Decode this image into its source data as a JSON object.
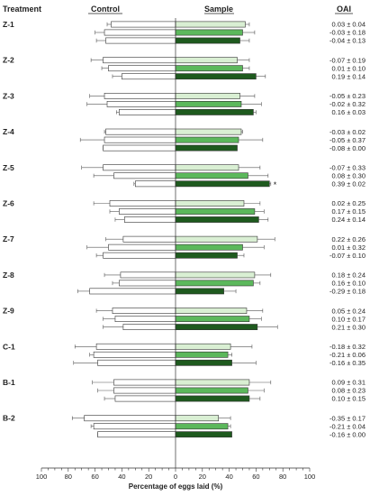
{
  "chart_data": {
    "type": "bar",
    "orientation": "horizontal-diverging",
    "headers": {
      "treatment": "Treatment",
      "control": "Control",
      "sample": "Sample",
      "oai": "OAI"
    },
    "xlabel": "Percentage of eggs laid (%)",
    "xlim": [
      -100,
      100
    ],
    "xticks": [
      -100,
      -80,
      -60,
      -40,
      -20,
      0,
      20,
      40,
      60,
      80,
      100
    ],
    "xtick_labels": [
      "100",
      "80",
      "60",
      "40",
      "20",
      "0",
      "20",
      "40",
      "60",
      "80",
      "100"
    ],
    "sample_colors": [
      "#d9efd3",
      "#5cb85c",
      "#1e5a1e"
    ],
    "control_color": "#ffffff",
    "groups": [
      {
        "treatment": "Z-1",
        "rows": [
          {
            "control": 48,
            "control_err": 3,
            "sample": 52,
            "sample_err": 3,
            "oai": "0.03 ± 0.04"
          },
          {
            "control": 53,
            "control_err": 7,
            "sample": 50,
            "sample_err": 9,
            "oai": "-0.03 ± 0.18"
          },
          {
            "control": 52,
            "control_err": 7,
            "sample": 48,
            "sample_err": 7,
            "oai": "-0.04 ± 0.13"
          }
        ]
      },
      {
        "treatment": "Z-2",
        "rows": [
          {
            "control": 54,
            "control_err": 9,
            "sample": 46,
            "sample_err": 9,
            "oai": "-0.07 ± 0.19"
          },
          {
            "control": 50,
            "control_err": 5,
            "sample": 50,
            "sample_err": 5,
            "oai": "0.01 ± 0.10"
          },
          {
            "control": 40,
            "control_err": 7,
            "sample": 60,
            "sample_err": 7,
            "oai": "0.19 ± 0.14"
          }
        ]
      },
      {
        "treatment": "Z-3",
        "rows": [
          {
            "control": 53,
            "control_err": 11,
            "sample": 48,
            "sample_err": 11,
            "oai": "-0.05 ± 0.23"
          },
          {
            "control": 51,
            "control_err": 15,
            "sample": 49,
            "sample_err": 15,
            "oai": "-0.02 ± 0.32"
          },
          {
            "control": 42,
            "control_err": 2,
            "sample": 58,
            "sample_err": 2,
            "oai": "0.16 ± 0.03"
          }
        ]
      },
      {
        "treatment": "Z-4",
        "rows": [
          {
            "control": 52,
            "control_err": 1,
            "sample": 49,
            "sample_err": 1,
            "oai": "-0.03 ± 0.02"
          },
          {
            "control": 53,
            "control_err": 18,
            "sample": 47,
            "sample_err": 18,
            "oai": "-0.05 ± 0.37"
          },
          {
            "control": 54,
            "control_err": 0,
            "sample": 46,
            "sample_err": 0,
            "oai": "-0.08 ± 0.00"
          }
        ]
      },
      {
        "treatment": "Z-5",
        "rows": [
          {
            "control": 54,
            "control_err": 16,
            "sample": 47,
            "sample_err": 16,
            "oai": "-0.07 ± 0.33"
          },
          {
            "control": 46,
            "control_err": 15,
            "sample": 54,
            "sample_err": 15,
            "oai": "0.08 ± 0.30"
          },
          {
            "control": 30,
            "control_err": 1,
            "sample": 70,
            "sample_err": 1,
            "oai": "0.39 ± 0.02",
            "significant": true
          }
        ]
      },
      {
        "treatment": "Z-6",
        "rows": [
          {
            "control": 49,
            "control_err": 12,
            "sample": 51,
            "sample_err": 12,
            "oai": "0.02 ± 0.25"
          },
          {
            "control": 42,
            "control_err": 7,
            "sample": 59,
            "sample_err": 7,
            "oai": "0.17 ± 0.15"
          },
          {
            "control": 38,
            "control_err": 7,
            "sample": 62,
            "sample_err": 7,
            "oai": "0.24 ± 0.14"
          }
        ]
      },
      {
        "treatment": "Z-7",
        "rows": [
          {
            "control": 39,
            "control_err": 13,
            "sample": 61,
            "sample_err": 13,
            "oai": "0.22 ± 0.26"
          },
          {
            "control": 50,
            "control_err": 16,
            "sample": 50,
            "sample_err": 16,
            "oai": "0.01 ± 0.32"
          },
          {
            "control": 54,
            "control_err": 5,
            "sample": 46,
            "sample_err": 5,
            "oai": "-0.07 ± 0.10"
          }
        ]
      },
      {
        "treatment": "Z-8",
        "rows": [
          {
            "control": 41,
            "control_err": 12,
            "sample": 59,
            "sample_err": 12,
            "oai": "0.18 ± 0.24"
          },
          {
            "control": 42,
            "control_err": 5,
            "sample": 58,
            "sample_err": 5,
            "oai": "0.16 ± 0.10"
          },
          {
            "control": 64,
            "control_err": 9,
            "sample": 36,
            "sample_err": 9,
            "oai": "-0.29 ± 0.18"
          }
        ]
      },
      {
        "treatment": "Z-9",
        "rows": [
          {
            "control": 47,
            "control_err": 12,
            "sample": 53,
            "sample_err": 12,
            "oai": "0.05 ± 0.24"
          },
          {
            "control": 45,
            "control_err": 9,
            "sample": 55,
            "sample_err": 9,
            "oai": "0.10 ± 0.17"
          },
          {
            "control": 39,
            "control_err": 15,
            "sample": 61,
            "sample_err": 15,
            "oai": "0.21 ± 0.30"
          }
        ]
      },
      {
        "treatment": "C-1",
        "rows": [
          {
            "control": 59,
            "control_err": 16,
            "sample": 41,
            "sample_err": 16,
            "oai": "-0.18 ± 0.32"
          },
          {
            "control": 61,
            "control_err": 3,
            "sample": 39,
            "sample_err": 3,
            "oai": "-0.21 ± 0.06"
          },
          {
            "control": 58,
            "control_err": 18,
            "sample": 42,
            "sample_err": 18,
            "oai": "-0.16 ± 0.35"
          }
        ]
      },
      {
        "treatment": "B-1",
        "rows": [
          {
            "control": 46,
            "control_err": 16,
            "sample": 55,
            "sample_err": 16,
            "oai": "0.09 ± 0.31"
          },
          {
            "control": 46,
            "control_err": 12,
            "sample": 54,
            "sample_err": 12,
            "oai": "0.08 ± 0.23"
          },
          {
            "control": 45,
            "control_err": 8,
            "sample": 55,
            "sample_err": 8,
            "oai": "0.10 ± 0.15"
          }
        ]
      },
      {
        "treatment": "B-2",
        "rows": [
          {
            "control": 68,
            "control_err": 9,
            "sample": 32,
            "sample_err": 9,
            "oai": "-0.35 ± 0.17"
          },
          {
            "control": 61,
            "control_err": 2,
            "sample": 39,
            "sample_err": 2,
            "oai": "-0.21 ± 0.04"
          },
          {
            "control": 58,
            "control_err": 0,
            "sample": 42,
            "sample_err": 0,
            "oai": "-0.16 ± 0.00"
          }
        ]
      }
    ]
  }
}
